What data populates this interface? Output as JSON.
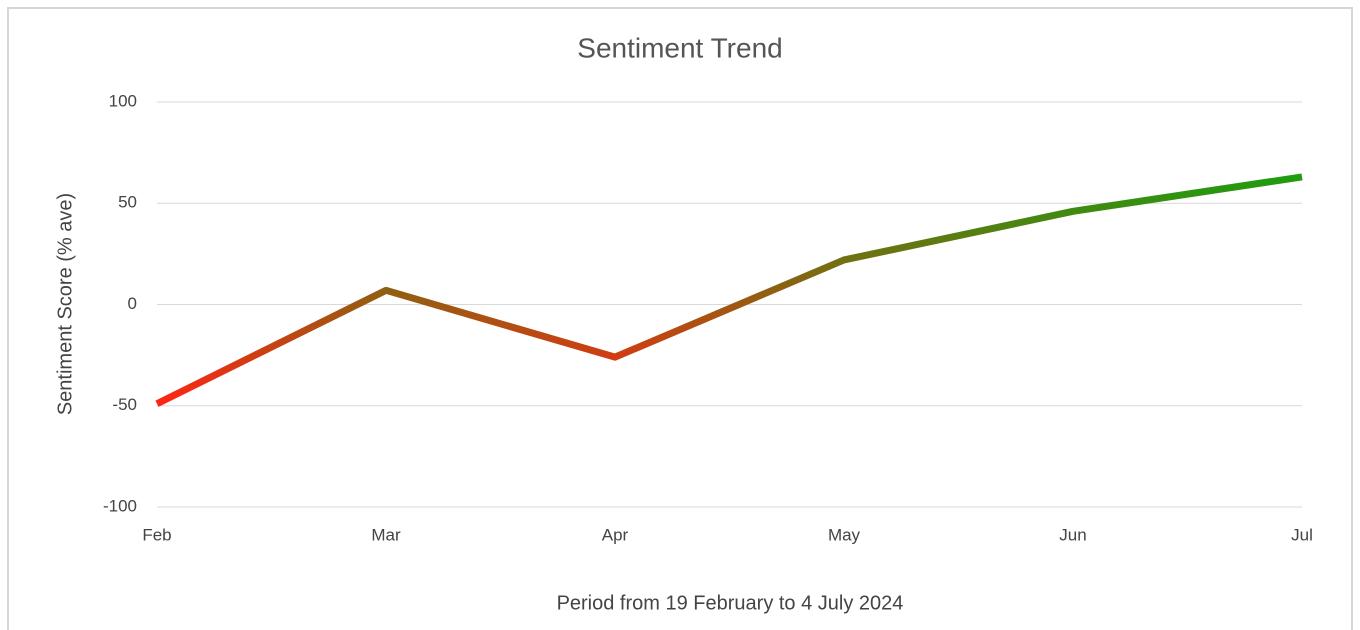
{
  "chart_data": {
    "type": "line",
    "title": "Sentiment Trend",
    "y_label": "Sentiment Score (% ave)",
    "x_label": "Period from 19 February to 4 July 2024",
    "categories": [
      "Feb",
      "Mar",
      "Apr",
      "May",
      "Jun",
      "Jul"
    ],
    "series": [
      {
        "values": [
          -49,
          7,
          -26,
          22,
          46,
          63
        ]
      }
    ],
    "gradient": {
      "low": "#ff2414",
      "high": "#1f9c10"
    },
    "ylim": [
      -100,
      100
    ],
    "yticks": [
      -100,
      -50,
      0,
      50,
      100
    ],
    "grid": true
  }
}
